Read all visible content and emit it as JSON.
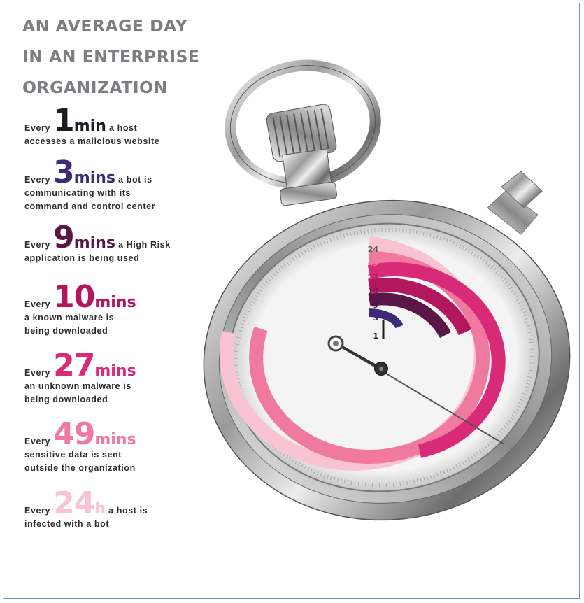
{
  "title_lines": [
    "AN AVERAGE DAY",
    "IN AN ENTERPRISE",
    "ORGANIZATION"
  ],
  "stats": [
    {
      "prefix": "Every",
      "number": "1",
      "unit": "min",
      "tail": "a host",
      "desc": [
        "accesses a malicious website"
      ],
      "color": "#1c1c24"
    },
    {
      "prefix": "Every",
      "number": "3",
      "unit": "mins",
      "tail": "a bot is",
      "desc": [
        "communicating with its",
        "command and control center"
      ],
      "color": "#3d2a78"
    },
    {
      "prefix": "Every",
      "number": "9",
      "unit": "mins",
      "tail": "a High Risk",
      "desc": [
        "application is being used"
      ],
      "color": "#5a1646"
    },
    {
      "prefix": "Every",
      "number": "10",
      "unit": "mins",
      "tail": "",
      "desc": [
        "a known malware is",
        "being downloaded"
      ],
      "color": "#b3175d"
    },
    {
      "prefix": "Every",
      "number": "27",
      "unit": "mins",
      "tail": "",
      "desc": [
        "an unknown malware is",
        "being downloaded"
      ],
      "color": "#d92a78"
    },
    {
      "prefix": "Every",
      "number": "49",
      "unit": "mins",
      "tail": "",
      "desc": [
        "sensitive data is sent",
        "outside the organization"
      ],
      "color": "#f0799f"
    },
    {
      "prefix": "Every",
      "number": "24",
      "unit": "h",
      "tail": "a host is",
      "desc": [
        "infected with a bot"
      ],
      "color": "#f9c3d3"
    }
  ],
  "dial_labels": [
    "24",
    "49",
    "27",
    "10",
    "9",
    "3",
    "1"
  ],
  "colors": {
    "title": "#7d7d82",
    "body_text": "#2d2d2d"
  }
}
